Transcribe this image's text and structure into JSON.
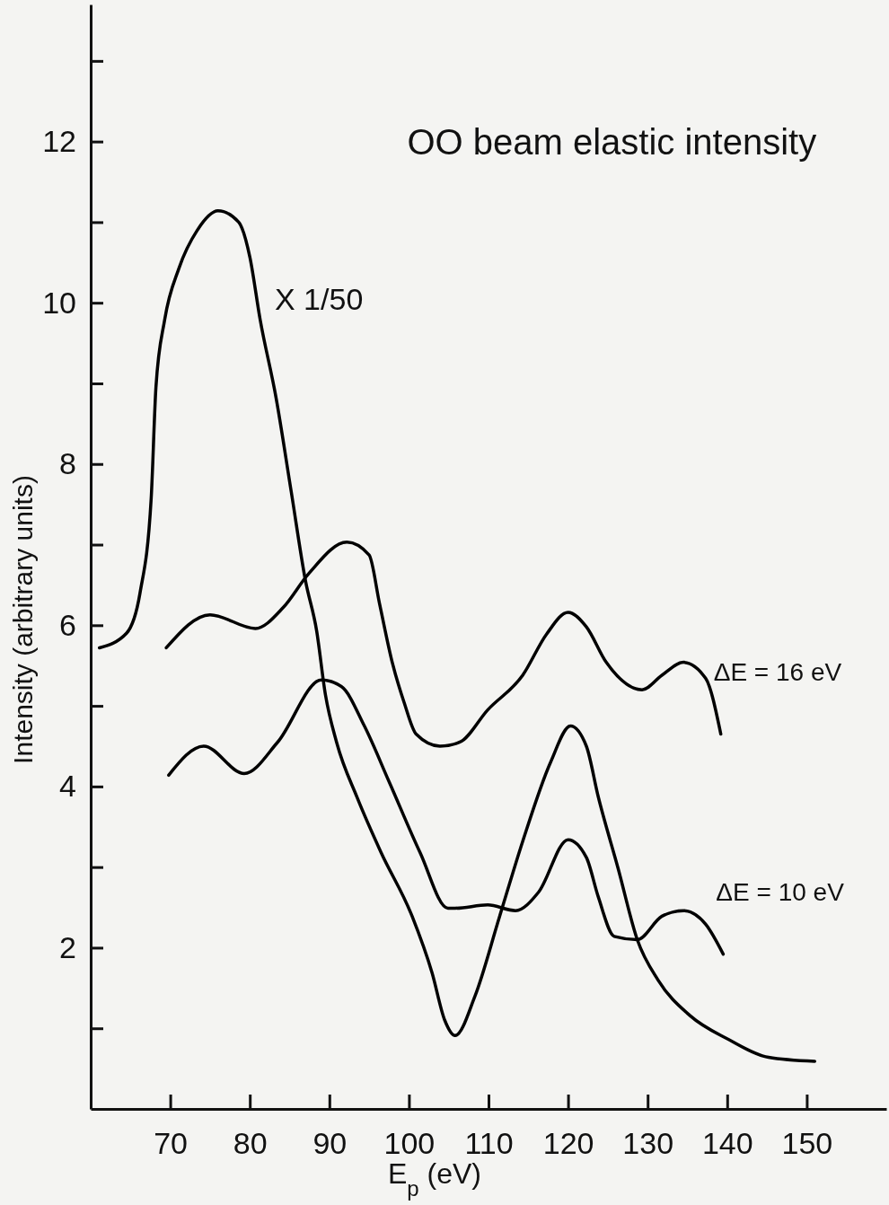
{
  "chart_data": {
    "type": "line",
    "title": "OO beam elastic intensity",
    "xlabel": "E$_{p}$ (eV)",
    "ylabel": "Intensity (arbitrary units)",
    "xlim": [
      60,
      160
    ],
    "xticks": [
      70,
      80,
      90,
      100,
      110,
      120,
      130,
      140,
      150
    ],
    "ylim": [
      0,
      13.7
    ],
    "yticks": [
      {
        "value": 1,
        "label": null
      },
      2,
      {
        "value": 3,
        "label": null
      },
      4,
      {
        "value": 5,
        "label": null
      },
      6,
      {
        "value": 7,
        "label": null
      },
      8,
      {
        "value": 9,
        "label": null
      },
      10,
      {
        "value": 11,
        "label": null
      },
      12,
      {
        "value": 13,
        "label": null
      }
    ],
    "grid": false,
    "legend": false,
    "marker": "none",
    "line_style": "solid",
    "annotations": [
      "X 1/50"
    ],
    "series": [
      {
        "color": "#000000",
        "x": [
          61.1,
          64.5,
          66.2,
          67.6,
          68.2,
          69.3,
          71.1,
          73.4,
          76,
          78.6,
          80,
          81.3,
          83.3,
          85.2,
          87,
          88.4,
          89.5,
          90.9,
          93.5,
          96.5,
          100.4,
          102.9,
          104.5,
          105.8,
          108.3,
          111.4,
          114.3,
          117.8,
          120.3,
          122.3,
          123.8,
          126.3,
          128.7,
          131.3,
          135.3,
          140.2,
          145.2,
          151
        ],
        "values": [
          5.72,
          5.9,
          6.4,
          7.57,
          8.95,
          9.79,
          10.43,
          10.9,
          11.14,
          11.0,
          10.57,
          9.79,
          8.82,
          7.66,
          6.55,
          5.93,
          5.14,
          4.55,
          3.86,
          3.18,
          2.39,
          1.69,
          1.1,
          0.91,
          1.4,
          2.39,
          3.32,
          4.3,
          4.75,
          4.5,
          3.87,
          2.98,
          2.1,
          1.6,
          1.16,
          0.86,
          0.64,
          0.59
        ]
      },
      {
        "name": "ΔE = 16 eV",
        "color": "#000000",
        "x": [
          69.5,
          75,
          80.7,
          84.2,
          87.4,
          92.2,
          95,
          96.3,
          97.9,
          99.4,
          100.9,
          103.9,
          106.4,
          109.9,
          114.3,
          117.3,
          120,
          122.3,
          124.8,
          129.3,
          131.8,
          134.5,
          137.3,
          139.2
        ],
        "values": [
          5.72,
          6.13,
          5.96,
          6.22,
          6.64,
          7.03,
          6.87,
          6.27,
          5.54,
          5.04,
          4.65,
          4.5,
          4.55,
          4.95,
          5.38,
          5.89,
          6.16,
          5.98,
          5.54,
          5.2,
          5.38,
          5.54,
          5.34,
          4.65
        ]
      },
      {
        "name": "ΔE = 10 eV",
        "color": "#000000",
        "x": [
          69.8,
          74.2,
          79.3,
          83.5,
          89,
          91.5,
          94.4,
          97.5,
          101.4,
          104.9,
          105.8,
          109.9,
          113.4,
          116.3,
          120,
          122.3,
          123.8,
          125.8,
          128.7,
          131.8,
          134.5,
          137.3,
          139.5
        ],
        "values": [
          4.14,
          4.5,
          4.16,
          4.55,
          5.32,
          5.24,
          4.75,
          4.06,
          3.18,
          2.49,
          2.49,
          2.53,
          2.46,
          2.69,
          3.34,
          3.12,
          2.63,
          2.14,
          2.1,
          2.39,
          2.46,
          2.29,
          1.92
        ]
      }
    ]
  }
}
